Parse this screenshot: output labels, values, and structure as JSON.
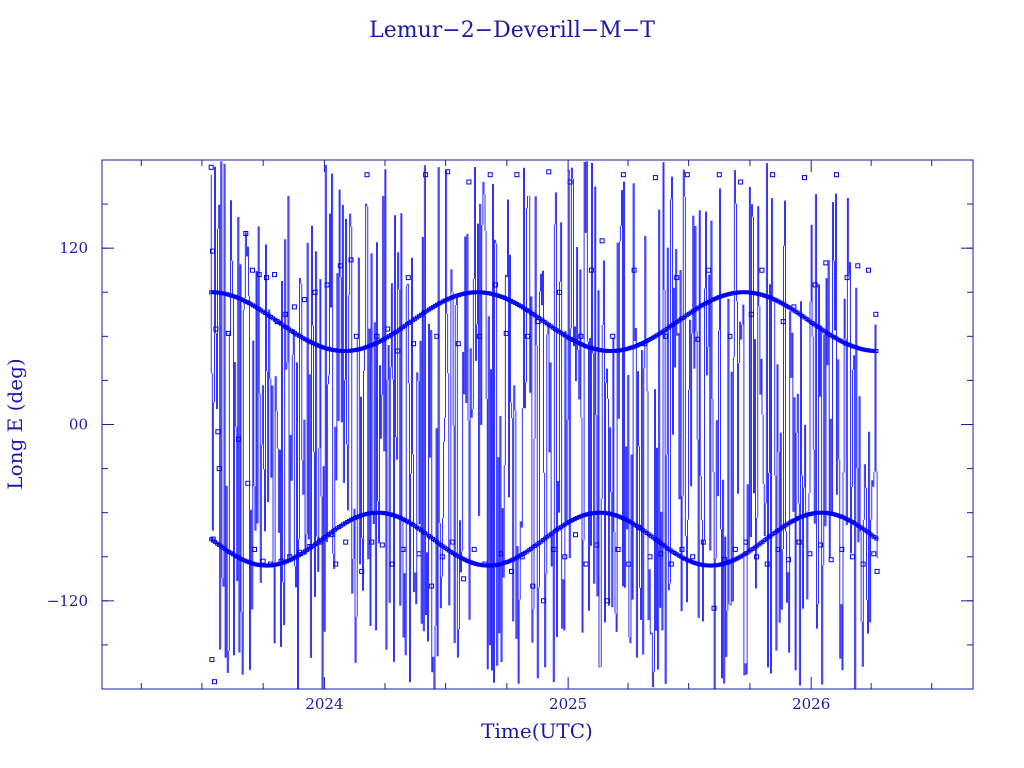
{
  "chart_data": {
    "type": "scatter",
    "title": "Lemur−2−Deverill−M−T",
    "xlabel": "Time(UTC)",
    "ylabel": "Long E (deg)",
    "x_range": [
      "2023-02-01",
      "2026-09-01"
    ],
    "ylim": [
      -180,
      180
    ],
    "x_ticks": [
      {
        "value": "2024-01-01",
        "label": "2024"
      },
      {
        "value": "2025-01-01",
        "label": "2025"
      },
      {
        "value": "2026-01-01",
        "label": "2026"
      }
    ],
    "y_ticks": [
      {
        "value": -120,
        "label": "−120"
      },
      {
        "value": 0,
        "label": "00"
      },
      {
        "value": 120,
        "label": "120"
      }
    ],
    "x_minor_ticks": [
      "2023-04-01",
      "2023-07-01",
      "2023-10-01",
      "2024-04-01",
      "2024-07-01",
      "2024-10-01",
      "2025-04-01",
      "2025-07-01",
      "2025-10-01",
      "2026-04-01",
      "2026-07-01"
    ],
    "y_minor_step": 30,
    "grid": false,
    "legend": "none",
    "color": "#0000ff",
    "data_start": "2023-07-15",
    "data_end": "2026-04-10",
    "series": [
      {
        "points": [
          [
            "2023-07-15",
            175
          ],
          [
            "2023-07-16",
            -160
          ],
          [
            "2023-07-17",
            118
          ],
          [
            "2023-07-18",
            -78
          ],
          [
            "2023-07-20",
            -175
          ],
          [
            "2023-07-22",
            65
          ],
          [
            "2023-07-25",
            -5
          ],
          [
            "2023-07-27",
            -30
          ],
          [
            "2023-08-10",
            62
          ],
          [
            "2023-08-25",
            -10
          ],
          [
            "2023-09-05",
            130
          ],
          [
            "2023-09-08",
            -40
          ],
          [
            "2023-09-15",
            105
          ],
          [
            "2023-09-18",
            -85
          ],
          [
            "2023-09-25",
            102
          ],
          [
            "2023-10-01",
            -93
          ],
          [
            "2023-10-06",
            100
          ],
          [
            "2023-10-12",
            -95
          ],
          [
            "2023-10-18",
            102
          ],
          [
            "2023-10-22",
            70
          ],
          [
            "2023-10-28",
            -93
          ],
          [
            "2023-11-03",
            75
          ],
          [
            "2023-11-10",
            -90
          ],
          [
            "2023-11-17",
            80
          ],
          [
            "2023-11-25",
            -87
          ],
          [
            "2023-12-02",
            85
          ],
          [
            "2023-12-10",
            -83
          ],
          [
            "2023-12-18",
            90
          ],
          [
            "2023-12-26",
            -80
          ],
          [
            "2024-01-05",
            95
          ],
          [
            "2024-01-12",
            -75
          ],
          [
            "2024-01-18",
            -95
          ],
          [
            "2024-01-25",
            108
          ],
          [
            "2024-02-02",
            -80
          ],
          [
            "2024-02-10",
            112
          ],
          [
            "2024-02-18",
            60
          ],
          [
            "2024-02-26",
            -100
          ],
          [
            "2024-03-05",
            170
          ],
          [
            "2024-03-12",
            -80
          ],
          [
            "2024-03-20",
            60
          ],
          [
            "2024-03-28",
            -82
          ],
          [
            "2024-04-05",
            65
          ],
          [
            "2024-04-12",
            -95
          ],
          [
            "2024-04-20",
            50
          ],
          [
            "2024-04-28",
            -85
          ],
          [
            "2024-05-06",
            100
          ],
          [
            "2024-05-14",
            55
          ],
          [
            "2024-05-22",
            -88
          ],
          [
            "2024-06-01",
            170
          ],
          [
            "2024-06-10",
            -110
          ],
          [
            "2024-06-18",
            60
          ],
          [
            "2024-06-26",
            -90
          ],
          [
            "2024-07-04",
            172
          ],
          [
            "2024-07-12",
            -80
          ],
          [
            "2024-07-20",
            55
          ],
          [
            "2024-07-28",
            -105
          ],
          [
            "2024-08-05",
            165
          ],
          [
            "2024-08-13",
            -85
          ],
          [
            "2024-08-21",
            60
          ],
          [
            "2024-08-29",
            -95
          ],
          [
            "2024-09-06",
            170
          ],
          [
            "2024-09-14",
            95
          ],
          [
            "2024-09-22",
            -88
          ],
          [
            "2024-09-30",
            62
          ],
          [
            "2024-10-08",
            -100
          ],
          [
            "2024-10-16",
            170
          ],
          [
            "2024-10-24",
            -90
          ],
          [
            "2024-11-01",
            60
          ],
          [
            "2024-11-09",
            -110
          ],
          [
            "2024-11-17",
            70
          ],
          [
            "2024-11-25",
            -120
          ],
          [
            "2024-12-03",
            172
          ],
          [
            "2024-12-11",
            -85
          ],
          [
            "2024-12-19",
            90
          ],
          [
            "2024-12-27",
            -90
          ],
          [
            "2025-01-04",
            165
          ],
          [
            "2025-01-12",
            -75
          ],
          [
            "2025-01-20",
            60
          ],
          [
            "2025-01-28",
            -95
          ],
          [
            "2025-02-05",
            105
          ],
          [
            "2025-02-13",
            -82
          ],
          [
            "2025-02-21",
            125
          ],
          [
            "2025-03-01",
            -120
          ],
          [
            "2025-03-09",
            60
          ],
          [
            "2025-03-17",
            -85
          ],
          [
            "2025-03-25",
            170
          ],
          [
            "2025-04-02",
            -95
          ],
          [
            "2025-04-10",
            105
          ],
          [
            "2025-04-18",
            -70
          ],
          [
            "2025-04-26",
            55
          ],
          [
            "2025-05-04",
            -90
          ],
          [
            "2025-05-12",
            168
          ],
          [
            "2025-05-20",
            -88
          ],
          [
            "2025-05-28",
            60
          ],
          [
            "2025-06-05",
            -95
          ],
          [
            "2025-06-13",
            100
          ],
          [
            "2025-06-21",
            -85
          ],
          [
            "2025-06-29",
            170
          ],
          [
            "2025-07-07",
            -90
          ],
          [
            "2025-07-15",
            58
          ],
          [
            "2025-07-23",
            -80
          ],
          [
            "2025-07-31",
            105
          ],
          [
            "2025-08-08",
            -125
          ],
          [
            "2025-08-16",
            170
          ],
          [
            "2025-08-24",
            -92
          ],
          [
            "2025-09-01",
            60
          ],
          [
            "2025-09-09",
            -85
          ],
          [
            "2025-09-17",
            165
          ],
          [
            "2025-09-25",
            -80
          ],
          [
            "2025-10-03",
            75
          ],
          [
            "2025-10-11",
            -90
          ],
          [
            "2025-10-19",
            105
          ],
          [
            "2025-10-27",
            -95
          ],
          [
            "2025-11-04",
            170
          ],
          [
            "2025-11-12",
            -85
          ],
          [
            "2025-11-20",
            70
          ],
          [
            "2025-11-28",
            -92
          ],
          [
            "2025-12-06",
            80
          ],
          [
            "2025-12-14",
            -80
          ],
          [
            "2025-12-22",
            168
          ],
          [
            "2025-12-30",
            -88
          ],
          [
            "2026-01-07",
            95
          ],
          [
            "2026-01-15",
            -82
          ],
          [
            "2026-01-23",
            110
          ],
          [
            "2026-01-31",
            -92
          ],
          [
            "2026-02-08",
            170
          ],
          [
            "2026-02-16",
            -85
          ],
          [
            "2026-02-24",
            100
          ],
          [
            "2026-03-04",
            -90
          ],
          [
            "2026-03-12",
            108
          ],
          [
            "2026-03-20",
            -95
          ],
          [
            "2026-03-28",
            105
          ],
          [
            "2026-04-05",
            -88
          ],
          [
            "2026-04-08",
            75
          ],
          [
            "2026-04-10",
            -100
          ]
        ]
      }
    ]
  }
}
